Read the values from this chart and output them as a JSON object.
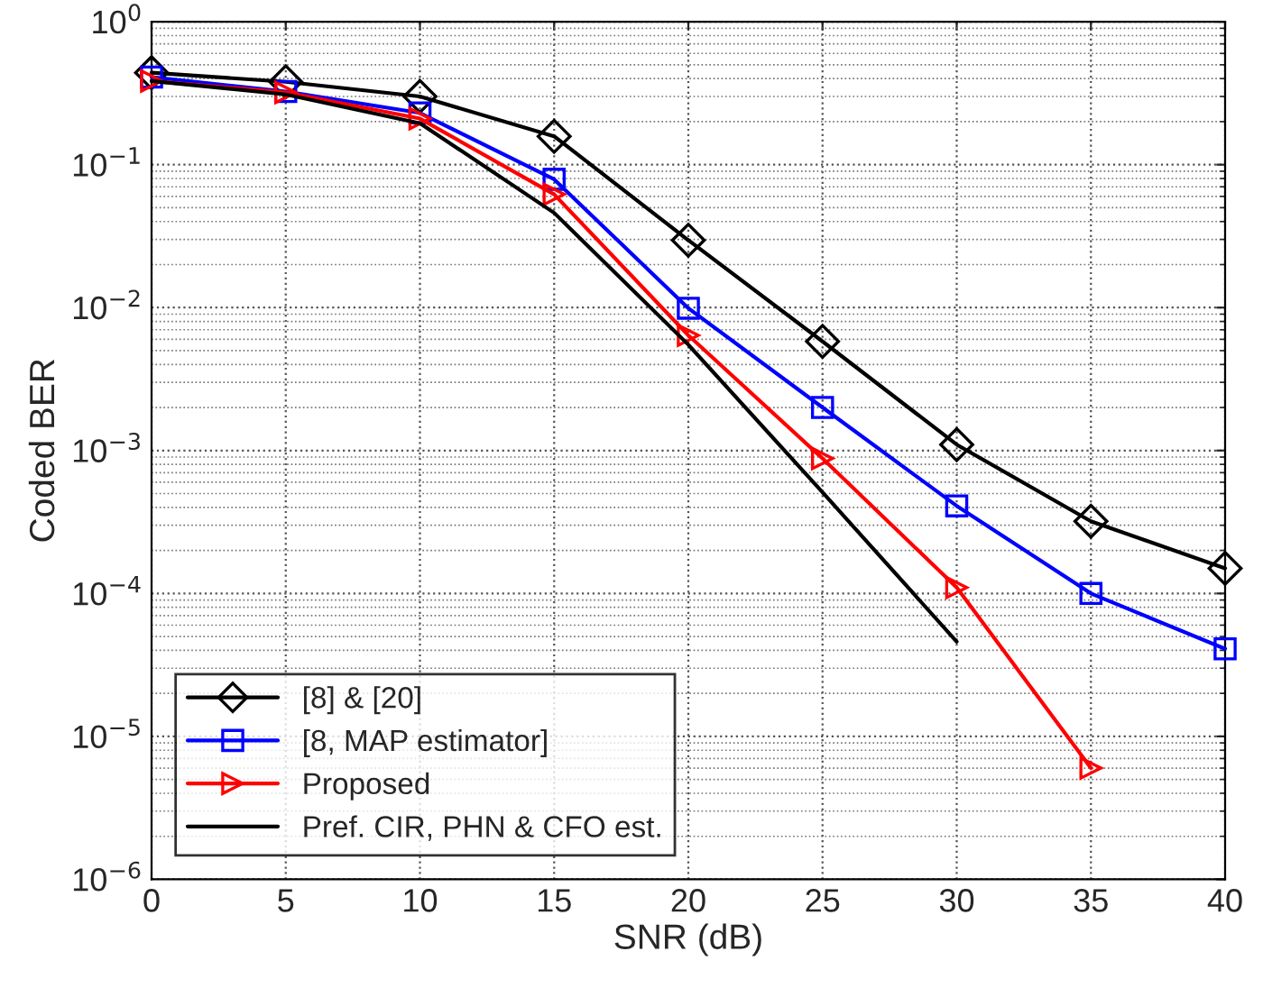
{
  "chart_data": {
    "type": "line",
    "xlabel": "SNR (dB)",
    "ylabel": "Coded BER",
    "log": "y",
    "x": [
      0,
      5,
      10,
      15,
      20,
      25,
      30,
      35,
      40
    ],
    "series": [
      {
        "name": "[8] & [20]",
        "color": "#000000",
        "marker": "diamond",
        "values": [
          0.44,
          0.38,
          0.3,
          0.158,
          0.0296,
          0.0058,
          0.0011,
          0.00032,
          0.00015
        ]
      },
      {
        "name": "[8, MAP estimator]",
        "color": "#0000ff",
        "marker": "square",
        "values": [
          0.41,
          0.325,
          0.23,
          0.079,
          0.0099,
          0.002,
          0.00041,
          0.0001,
          4.1e-05
        ]
      },
      {
        "name": "Proposed",
        "color": "#ff0000",
        "marker": "triangle",
        "values": [
          0.385,
          0.32,
          0.21,
          0.062,
          0.0064,
          0.00088,
          0.00011,
          6e-06,
          null
        ]
      },
      {
        "name": "Pref. CIR, PHN & CFO est.",
        "color": "#000000",
        "marker": "none",
        "values": [
          0.385,
          0.31,
          0.195,
          0.046,
          0.0055,
          0.00051,
          4.6e-05,
          null,
          null
        ]
      }
    ],
    "xlim": [
      0,
      40
    ],
    "xticks": [
      0,
      5,
      10,
      15,
      20,
      25,
      30,
      35,
      40
    ],
    "ylim": [
      1e-06,
      1
    ],
    "yticks": [
      {
        "value": 1e-06,
        "label": "10$^{−6}$"
      },
      {
        "value": 1e-05,
        "label": "10$^{−5}$"
      },
      {
        "value": 0.0001,
        "label": "10$^{−4}$"
      },
      {
        "value": 0.001,
        "label": "10$^{−3}$"
      },
      {
        "value": 0.01,
        "label": "10$^{−2}$"
      },
      {
        "value": 0.1,
        "label": "10$^{−1}$"
      },
      {
        "value": 1,
        "label": "10$^{0}$"
      }
    ],
    "grid": true,
    "legend": "bottom left",
    "line_style": "solid"
  }
}
